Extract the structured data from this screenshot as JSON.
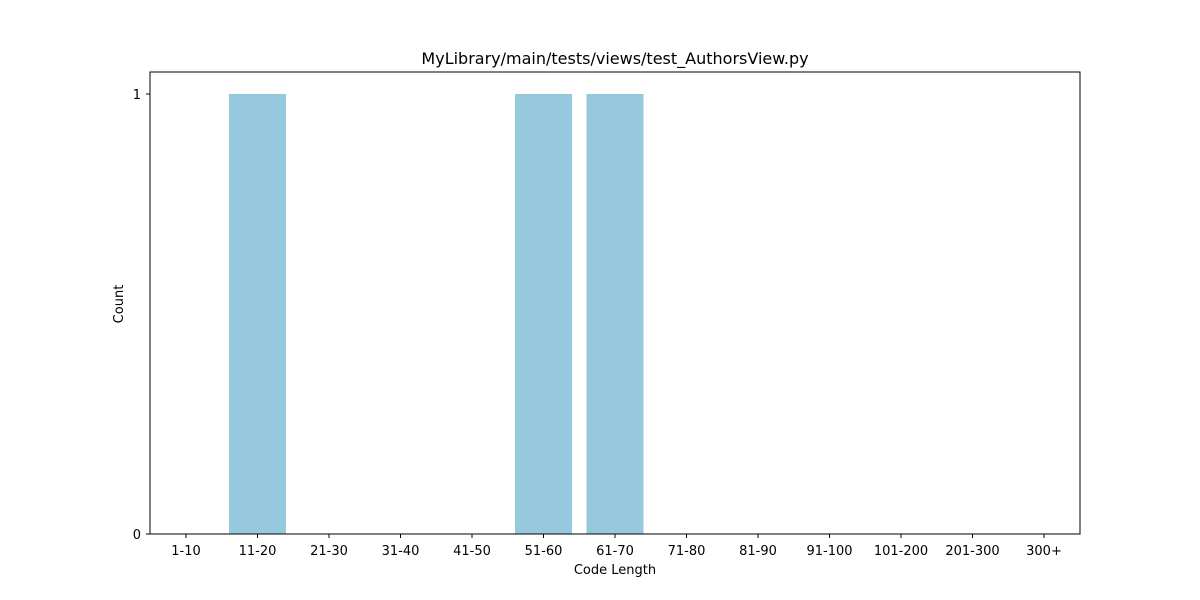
{
  "chart_data": {
    "type": "bar",
    "title": "MyLibrary/main/tests/views/test_AuthorsView.py",
    "xlabel": "Code Length",
    "ylabel": "Count",
    "categories": [
      "1-10",
      "11-20",
      "21-30",
      "31-40",
      "41-50",
      "51-60",
      "61-70",
      "71-80",
      "81-90",
      "91-100",
      "101-200",
      "201-300",
      "300+"
    ],
    "values": [
      0,
      1,
      0,
      0,
      0,
      1,
      1,
      0,
      0,
      0,
      0,
      0,
      0
    ],
    "ylim": [
      0,
      1
    ],
    "yticks": [
      0,
      1
    ],
    "grid": false,
    "bar_color": "#96c9dd"
  }
}
